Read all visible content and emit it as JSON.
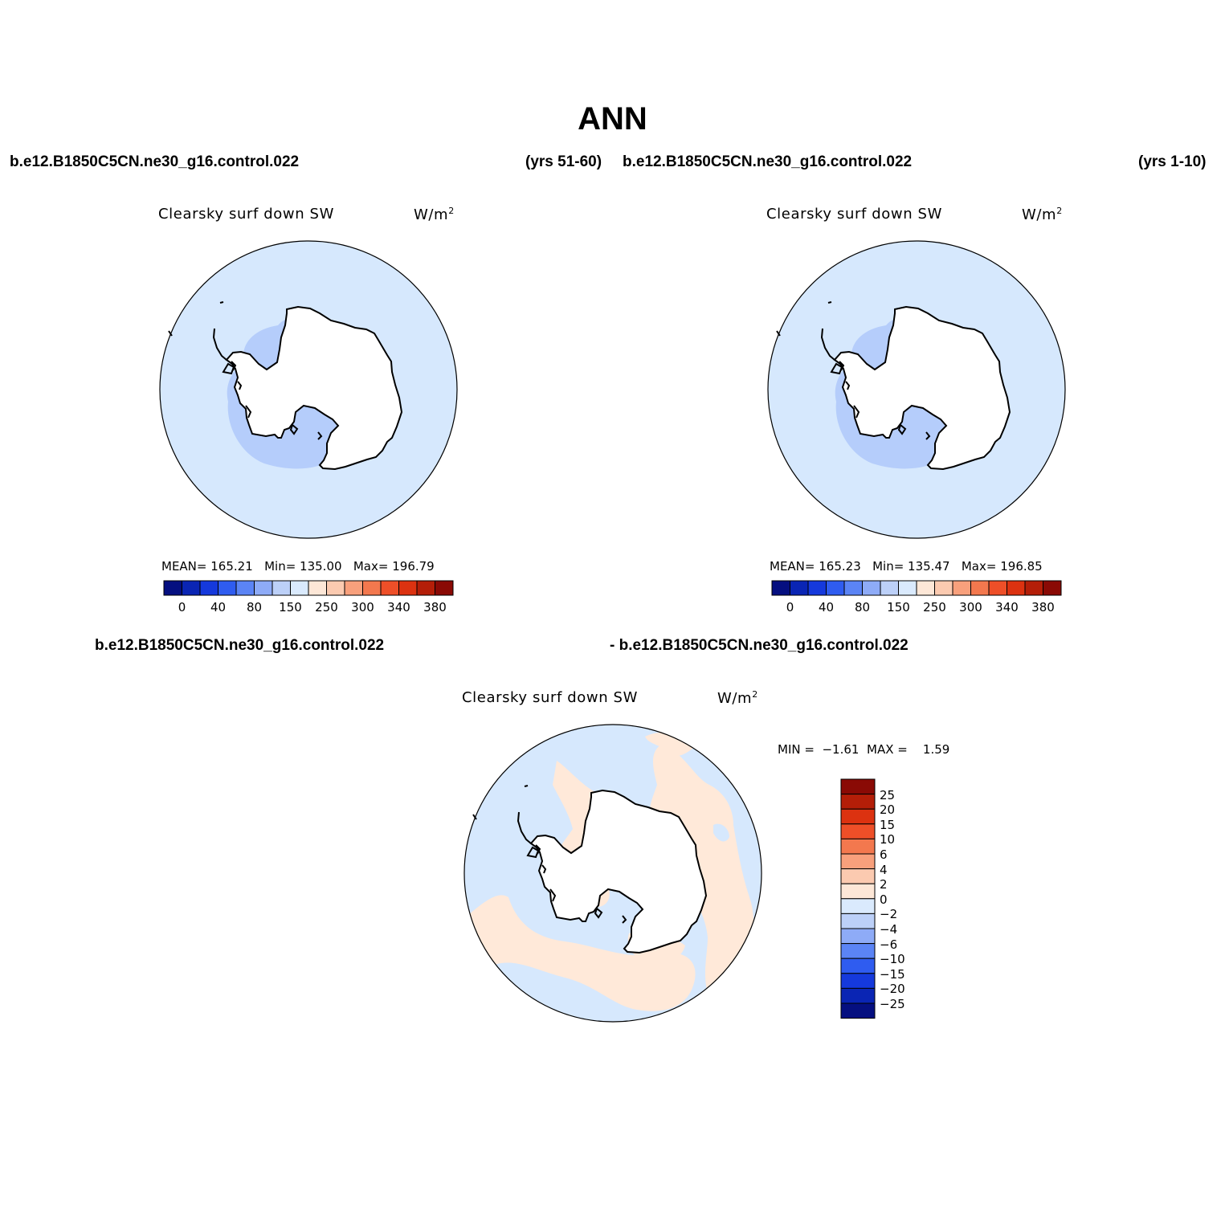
{
  "title": "ANN",
  "panels": [
    {
      "case_name": "b.e12.B1850C5CN.ne30_g16.control.022",
      "years": "(yrs 51-60)",
      "variable": "Clearsky surf down SW",
      "units": "W/m",
      "units_sup": "2",
      "stats": {
        "mean_label": "MEAN=",
        "mean": "165.21",
        "min_label": "Min=",
        "min": "135.00",
        "max_label": "Max=",
        "max": "196.79"
      }
    },
    {
      "case_name": "b.e12.B1850C5CN.ne30_g16.control.022",
      "years": "(yrs 1-10)",
      "variable": "Clearsky surf down SW",
      "units": "W/m",
      "units_sup": "2",
      "stats": {
        "mean_label": "MEAN=",
        "mean": "165.23",
        "min_label": "Min=",
        "min": "135.47",
        "max_label": "Max=",
        "max": "196.85"
      }
    }
  ],
  "diff_panel": {
    "case_a": "b.e12.B1850C5CN.ne30_g16.control.022",
    "case_b": "- b.e12.B1850C5CN.ne30_g16.control.022",
    "variable": "Clearsky surf down SW",
    "units": "W/m",
    "units_sup": "2",
    "stats": {
      "min_label": "MIN =",
      "min": "−1.61",
      "max_label": "MAX =",
      "max": "1.59"
    }
  },
  "colorbar_main": {
    "colors": [
      "#050f80",
      "#0a25b4",
      "#1539dc",
      "#2f5cf0",
      "#5b84f5",
      "#8eabf7",
      "#bcd0f8",
      "#daeafd",
      "#fde7d7",
      "#fbcab0",
      "#f8a07c",
      "#f3784e",
      "#ee4f28",
      "#dc3210",
      "#b41e08",
      "#8a0a05"
    ],
    "labels": [
      "0",
      "40",
      "80",
      "150",
      "250",
      "300",
      "340",
      "380"
    ]
  },
  "colorbar_diff": {
    "colors": [
      "#8a0a05",
      "#b41e08",
      "#dc3210",
      "#ee4f28",
      "#f3784e",
      "#f8a07c",
      "#fbcab0",
      "#fde7d7",
      "#daeafd",
      "#bcd0f8",
      "#8eabf7",
      "#5b84f5",
      "#2f5cf0",
      "#1539dc",
      "#0a25b4",
      "#050f80"
    ],
    "labels": [
      "25",
      "20",
      "15",
      "10",
      "6",
      "4",
      "2",
      "0",
      "−2",
      "−4",
      "−6",
      "−10",
      "−15",
      "−20",
      "−25"
    ]
  },
  "map_colors": {
    "ocean_fill": "#d6e8fd",
    "plateau_fill": "#b5cdfb",
    "positive_fill": "#ffe9d9",
    "coast": "#000000"
  }
}
